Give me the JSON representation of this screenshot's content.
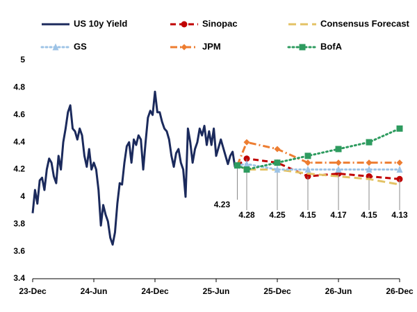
{
  "chart_data": {
    "type": "line",
    "xlim": [
      0,
      156
    ],
    "xticks": [
      {
        "value": 0,
        "label": "23-Dec"
      },
      {
        "value": 26,
        "label": "24-Jun"
      },
      {
        "value": 52,
        "label": "24-Dec"
      },
      {
        "value": 78,
        "label": "25-Jun"
      },
      {
        "value": 104,
        "label": "25-Dec"
      },
      {
        "value": 130,
        "label": "26-Jun"
      },
      {
        "value": 156,
        "label": "26-Dec"
      }
    ],
    "ylim": [
      3.4,
      5
    ],
    "yticks": [
      3.4,
      3.6,
      3.8,
      4,
      4.2,
      4.4,
      4.6,
      4.8,
      5
    ],
    "grid": false,
    "series": [
      {
        "name": "US 10y Yield",
        "color": "#1b2a5c",
        "style": "solid",
        "marker": "none",
        "x": [
          0,
          1,
          2,
          3,
          4,
          5,
          6,
          7,
          8,
          9,
          10,
          11,
          12,
          13,
          14,
          15,
          16,
          17,
          18,
          19,
          20,
          21,
          22,
          23,
          24,
          25,
          26,
          27,
          28,
          29,
          30,
          31,
          32,
          33,
          34,
          35,
          36,
          37,
          38,
          39,
          40,
          41,
          42,
          43,
          44,
          45,
          46,
          47,
          48,
          49,
          50,
          51,
          52,
          53,
          54,
          55,
          56,
          57,
          58,
          59,
          60,
          61,
          62,
          63,
          64,
          65,
          66,
          67,
          68,
          69,
          70,
          71,
          72,
          73,
          74,
          75,
          76,
          77,
          78,
          79,
          80,
          81,
          82,
          83,
          84,
          85,
          86,
          87
        ],
        "values": [
          3.88,
          4.05,
          3.95,
          4.12,
          4.14,
          4.05,
          4.2,
          4.28,
          4.25,
          4.15,
          4.1,
          4.3,
          4.2,
          4.4,
          4.5,
          4.62,
          4.67,
          4.5,
          4.48,
          4.42,
          4.5,
          4.45,
          4.3,
          4.22,
          4.35,
          4.2,
          4.25,
          4.2,
          4.05,
          3.79,
          3.94,
          3.87,
          3.82,
          3.7,
          3.65,
          3.74,
          3.95,
          4.1,
          4.09,
          4.25,
          4.37,
          4.4,
          4.25,
          4.42,
          4.38,
          4.45,
          4.42,
          4.2,
          4.4,
          4.58,
          4.63,
          4.6,
          4.77,
          4.62,
          4.62,
          4.55,
          4.5,
          4.48,
          4.42,
          4.3,
          4.22,
          4.32,
          4.35,
          4.25,
          4.2,
          4.0,
          4.5,
          4.4,
          4.25,
          4.35,
          4.4,
          4.5,
          4.45,
          4.52,
          4.38,
          4.48,
          4.38,
          4.5,
          4.3,
          4.36,
          4.42,
          4.36,
          4.3,
          4.24,
          4.3,
          4.33,
          4.22,
          4.23
        ]
      },
      {
        "name": "Sinopac",
        "color": "#c00000",
        "style": "dashed",
        "marker": "circle",
        "data_labels": true,
        "x": [
          87,
          91,
          104,
          117,
          130,
          143,
          156
        ],
        "values": [
          4.23,
          4.28,
          4.25,
          4.15,
          4.17,
          4.15,
          4.13
        ]
      },
      {
        "name": "Consensus Forecast",
        "color": "#e3c264",
        "style": "long-dash",
        "marker": "none",
        "x": [
          87,
          91,
          104,
          117,
          130,
          143,
          156
        ],
        "values": [
          4.23,
          4.2,
          4.2,
          4.17,
          4.15,
          4.13,
          4.09
        ]
      },
      {
        "name": "GS",
        "color": "#9dc3e6",
        "style": "dotted",
        "marker": "triangle",
        "x": [
          87,
          91,
          104,
          117,
          130,
          143,
          156
        ],
        "values": [
          4.23,
          4.24,
          4.2,
          4.2,
          4.2,
          4.2,
          4.2
        ]
      },
      {
        "name": "JPM",
        "color": "#ed7d31",
        "style": "dash-dot",
        "marker": "diamond",
        "x": [
          87,
          91,
          104,
          117,
          130,
          143,
          156
        ],
        "values": [
          4.23,
          4.4,
          4.35,
          4.25,
          4.25,
          4.25,
          4.25
        ]
      },
      {
        "name": "BofA",
        "color": "#2e9b5f",
        "style": "dotted",
        "marker": "square",
        "x": [
          87,
          91,
          104,
          117,
          130,
          143,
          156
        ],
        "values": [
          4.23,
          4.2,
          4.25,
          4.3,
          4.35,
          4.4,
          4.5
        ]
      }
    ]
  }
}
